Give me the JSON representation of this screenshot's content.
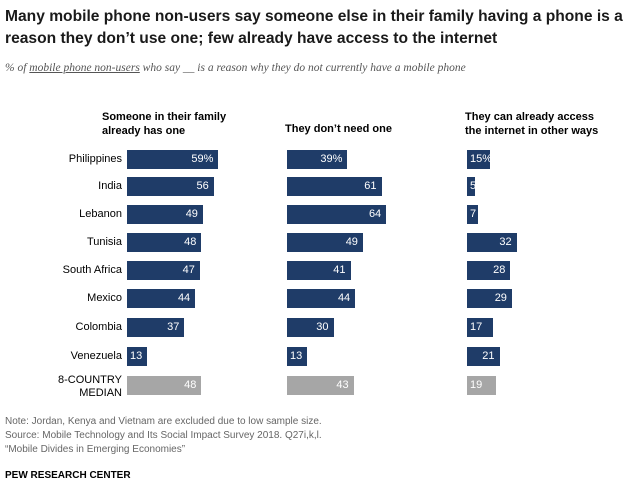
{
  "header": {
    "title": "Many mobile phone non-users say someone else in their family having a phone is a reason they don’t use one; few already have access to the internet",
    "subtitle_pre": "% of ",
    "subtitle_link": "mobile phone non-users",
    "subtitle_post": " who say __ is a reason why they do not currently have a mobile phone"
  },
  "chart_data": {
    "type": "bar",
    "orientation": "horizontal",
    "categories": [
      "Philippines",
      "India",
      "Lebanon",
      "Tunisia",
      "South Africa",
      "Mexico",
      "Colombia",
      "Venezuela",
      "8-COUNTRY MEDIAN"
    ],
    "category_lines": [
      [
        "Philippines"
      ],
      [
        "India"
      ],
      [
        "Lebanon"
      ],
      [
        "Tunisia"
      ],
      [
        "South Africa"
      ],
      [
        "Mexico"
      ],
      [
        "Colombia"
      ],
      [
        "Venezuela"
      ],
      [
        "8-COUNTRY",
        "MEDIAN"
      ]
    ],
    "series": [
      {
        "name": "Someone in their family already has one",
        "name_lines": [
          "Someone in their family",
          "already has one"
        ],
        "values": [
          59,
          56,
          49,
          48,
          47,
          44,
          37,
          13,
          48
        ],
        "labels": [
          "59%",
          "56",
          "49",
          "48",
          "47",
          "44",
          "37",
          "13",
          "48"
        ]
      },
      {
        "name": "They don’t need one",
        "name_lines": [
          "They don’t need one"
        ],
        "values": [
          39,
          61,
          64,
          49,
          41,
          44,
          30,
          13,
          43
        ],
        "labels": [
          "39%",
          "61",
          "64",
          "49",
          "41",
          "44",
          "30",
          "13",
          "43"
        ]
      },
      {
        "name": "They can already access the internet in other ways",
        "name_lines": [
          "They can already access",
          "the internet in other ways"
        ],
        "values": [
          15,
          5,
          7,
          32,
          28,
          29,
          17,
          21,
          19
        ],
        "labels": [
          "15%",
          "5",
          "7",
          "32",
          "28",
          "29",
          "17",
          "21",
          "19"
        ]
      }
    ],
    "colors": {
      "country": "#1f3c68",
      "median": "#a6a6a6"
    }
  },
  "footer": {
    "note": "Note: Jordan, Kenya and Vietnam are excluded due to low sample size.",
    "source": "Source: Mobile Technology and Its Social Impact Survey 2018. Q27i,k,l.",
    "report": "“Mobile Divides in Emerging Economies”",
    "brand": "PEW RESEARCH CENTER"
  }
}
